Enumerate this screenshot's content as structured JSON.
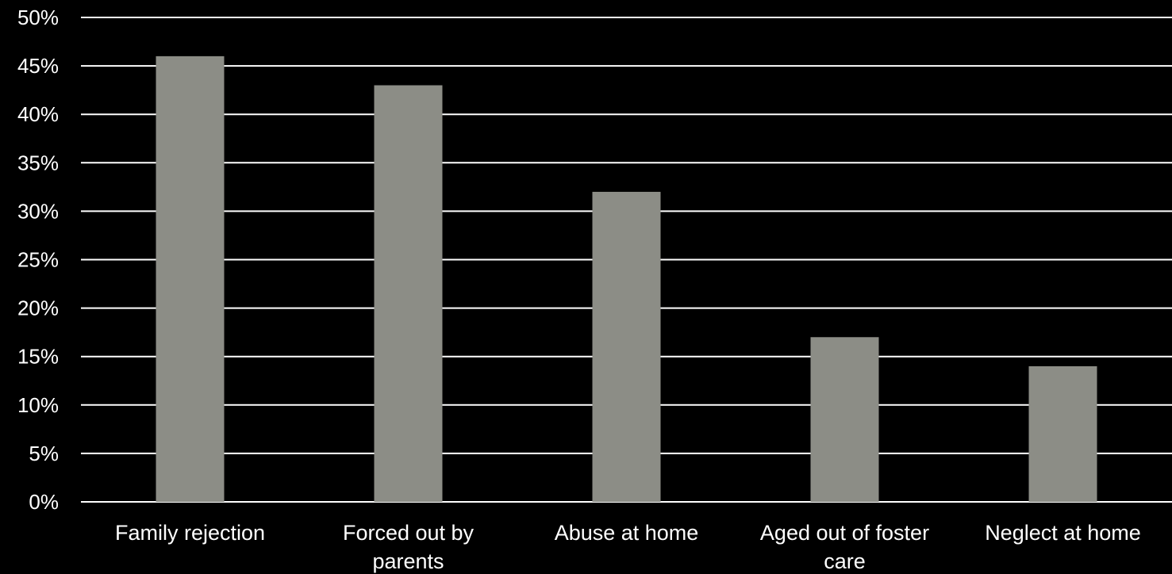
{
  "chart_data": {
    "type": "bar",
    "categories": [
      [
        "Family rejection"
      ],
      [
        "Forced out by",
        "parents"
      ],
      [
        "Abuse at home"
      ],
      [
        "Aged out of foster",
        "care"
      ],
      [
        "Neglect at home"
      ]
    ],
    "values": [
      46,
      43,
      32,
      17,
      14
    ],
    "ylim": [
      0,
      50
    ],
    "ytick_step": 5,
    "ytick_labels": [
      "0%",
      "5%",
      "10%",
      "15%",
      "20%",
      "25%",
      "30%",
      "35%",
      "40%",
      "45%",
      "50%"
    ],
    "grid": true,
    "colors": {
      "background": "#000000",
      "bar": "#8c8d86",
      "grid": "#ffffff",
      "text": "#ffffff"
    }
  }
}
